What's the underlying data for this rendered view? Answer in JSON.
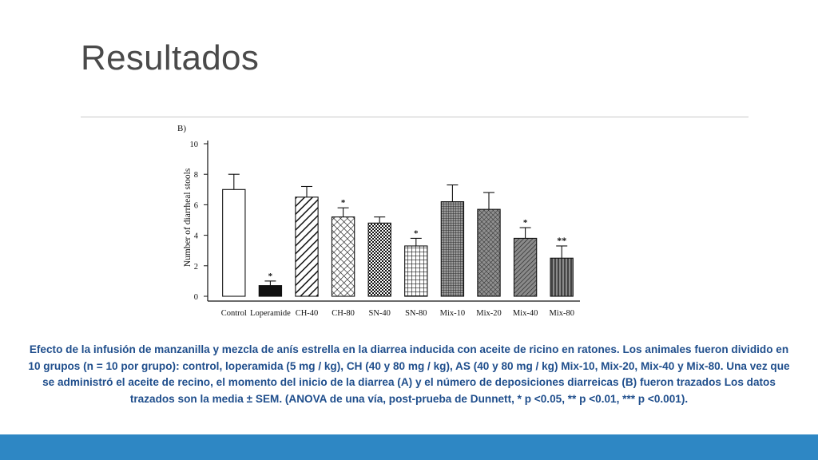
{
  "slide": {
    "title": "Resultados",
    "caption": "Efecto de la infusión de manzanilla y mezcla de anís estrella en la diarrea inducida con aceite de ricino en ratones. Los animales fueron dividido en 10 grupos (n = 10 por grupo): control, loperamida (5 mg / kg), CH (40 y 80 mg / kg), AS (40 y 80 mg / kg) Mix-10, Mix-20, Mix-40 y Mix-80. Una vez que se administró el aceite de recino, el momento del inicio de la diarrea (A) y el número de deposiciones diarreicas (B) fueron trazados Los datos trazados son la media ± SEM. (ANOVA de una vía, post-prueba de Dunnett, * p <0.05, ** p <0.01, *** p <0.001).",
    "accent_color": "#2e87c4",
    "caption_color": "#1f4e8c",
    "title_color": "#4a4a4a"
  },
  "chart_data": {
    "type": "bar",
    "panel_label": "B)",
    "title": "",
    "xlabel": "",
    "ylabel": "Number of diarrheal stools",
    "ylim": [
      0,
      10
    ],
    "yticks": [
      0,
      2,
      4,
      6,
      8,
      10
    ],
    "grid": false,
    "categories": [
      "Control",
      "Loperamide",
      "CH-40",
      "CH-80",
      "SN-40",
      "SN-80",
      "Mix-10",
      "Mix-20",
      "Mix-40",
      "Mix-80"
    ],
    "values": [
      7.0,
      0.7,
      6.5,
      5.2,
      4.8,
      3.3,
      6.2,
      5.7,
      3.8,
      2.5
    ],
    "errors": [
      1.0,
      0.3,
      0.7,
      0.6,
      0.4,
      0.5,
      1.1,
      1.1,
      0.7,
      0.8
    ],
    "significance": [
      "",
      "*",
      "",
      "*",
      "",
      "*",
      "",
      "",
      "*",
      "**"
    ],
    "fill_patterns": [
      "empty",
      "solid",
      "diagonal-wide",
      "crosshatch-diagonal",
      "checker",
      "grid",
      "grid-fine-gray",
      "crosshatch-gray",
      "diagonal-gray",
      "vertical-gray"
    ]
  }
}
